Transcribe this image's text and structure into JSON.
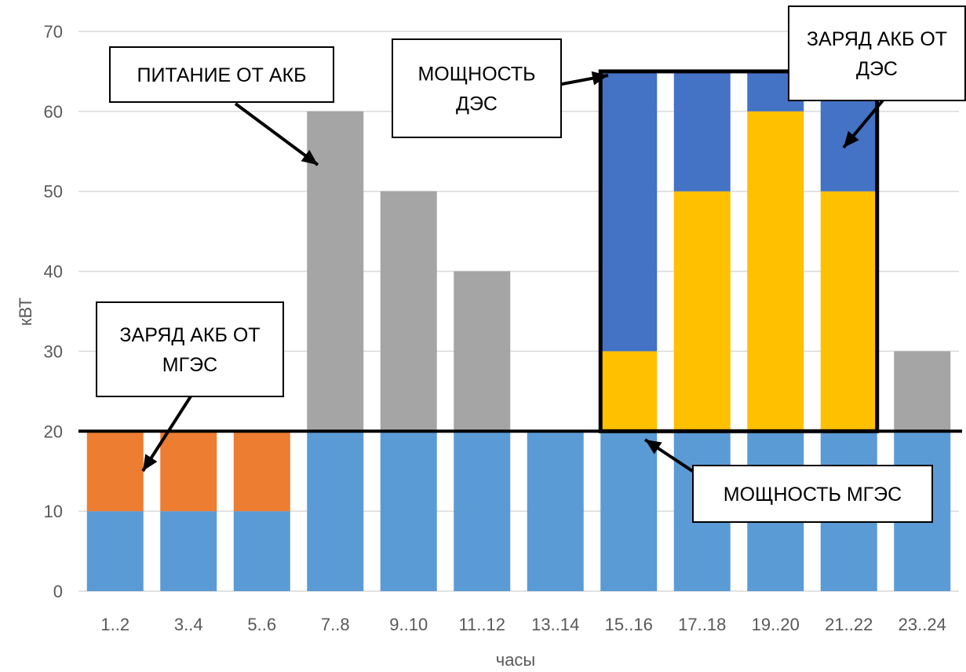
{
  "chart_data": {
    "type": "bar",
    "stacked": true,
    "xlabel": "часы",
    "ylabel": "кВТ",
    "ylim": [
      0,
      70
    ],
    "yticks": [
      0,
      10,
      20,
      30,
      40,
      50,
      60,
      70
    ],
    "grid": true,
    "categories": [
      "1..2",
      "3..4",
      "5..6",
      "7..8",
      "9..10",
      "11..12",
      "13..14",
      "15..16",
      "17..18",
      "19..20",
      "21..22",
      "23..24"
    ],
    "series": [
      {
        "color": "#5b9bd5",
        "values": [
          10,
          10,
          10,
          20,
          20,
          20,
          20,
          20,
          20,
          20,
          20,
          20
        ]
      },
      {
        "color": "#ed7d31",
        "values": [
          10,
          10,
          10,
          0,
          0,
          0,
          0,
          0,
          0,
          0,
          0,
          0
        ]
      },
      {
        "color": "#a5a5a5",
        "values": [
          0,
          0,
          0,
          40,
          30,
          20,
          0,
          0,
          0,
          0,
          0,
          10
        ]
      },
      {
        "color": "#ffc000",
        "values": [
          0,
          0,
          0,
          0,
          0,
          0,
          0,
          10,
          30,
          40,
          30,
          0
        ]
      },
      {
        "color": "#4472c4",
        "values": [
          0,
          0,
          0,
          0,
          0,
          0,
          0,
          35,
          15,
          5,
          15,
          0
        ]
      }
    ],
    "reference_lines": {
      "mges_power": 20,
      "des_power": 65,
      "des_range": [
        "15..16",
        "21..22"
      ]
    },
    "annotations": [
      {
        "id": "battery-supply",
        "text": [
          "ПИТАНИЕ ОТ АКБ"
        ]
      },
      {
        "id": "des-power",
        "text": [
          "МОЩНОСТЬ",
          "ДЭС"
        ]
      },
      {
        "id": "charge-from-des",
        "text": [
          "ЗАРЯД АКБ ОТ",
          "ДЭС"
        ]
      },
      {
        "id": "charge-from-mges",
        "text": [
          "ЗАРЯД АКБ ОТ",
          "МГЭС"
        ]
      },
      {
        "id": "mges-power",
        "text": [
          "МОЩНОСТЬ МГЭС"
        ]
      }
    ]
  }
}
